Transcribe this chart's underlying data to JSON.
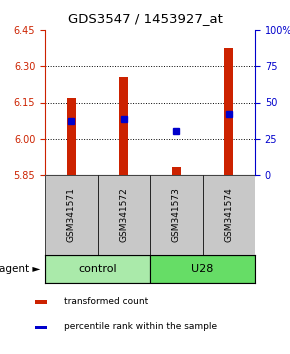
{
  "title": "GDS3547 / 1453927_at",
  "samples": [
    "GSM341571",
    "GSM341572",
    "GSM341573",
    "GSM341574"
  ],
  "red_bar_tops": [
    6.17,
    6.255,
    5.885,
    6.375
  ],
  "blue_dot_values": [
    6.073,
    6.082,
    6.032,
    6.103
  ],
  "y_min": 5.85,
  "y_max": 6.45,
  "y_ticks": [
    5.85,
    6.0,
    6.15,
    6.3,
    6.45
  ],
  "right_y_ticks": [
    0,
    25,
    50,
    75,
    100
  ],
  "right_y_labels": [
    "0",
    "25",
    "50",
    "75",
    "100%"
  ],
  "groups": [
    {
      "label": "control",
      "samples": [
        0,
        1
      ],
      "color": "#AAEAAA"
    },
    {
      "label": "U28",
      "samples": [
        2,
        3
      ],
      "color": "#66DD66"
    }
  ],
  "bar_color": "#CC2200",
  "dot_color": "#0000CC",
  "legend": [
    {
      "color": "#CC2200",
      "label": "transformed count"
    },
    {
      "color": "#0000CC",
      "label": "percentile rank within the sample"
    }
  ],
  "bar_width": 0.18,
  "left_axis_color": "#CC2200",
  "right_axis_color": "#0000CC",
  "sample_box_color": "#C8C8C8",
  "grid_dotted_at": [
    6.0,
    6.15,
    6.3
  ]
}
